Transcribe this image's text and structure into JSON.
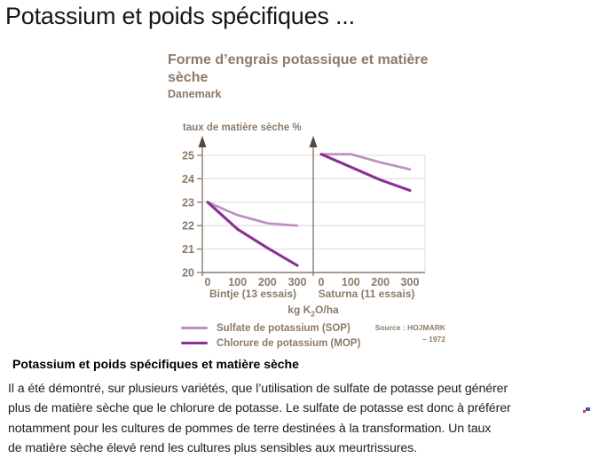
{
  "page": {
    "title": "Potassium et poids spécifiques ...",
    "section_heading": "Potassium et poids spécifiques et matière sèche",
    "body_lines": [
      "Il a été démontré, sur plusieurs variétés, que l’utilisation de sulfate de potasse peut générer",
      "plus de matière sèche que le chlorure de potasse. Le sulfate de potasse est donc à préférer",
      "notamment pour les cultures de pommes de terre destinées à la transformation. Un taux",
      "de matière sèche élevé rend les cultures plus sensibles aux meurtrissures."
    ]
  },
  "colors": {
    "accent_brown": "#8c7a69",
    "arrow_brown": "#55483b",
    "grid_gray": "#dcdcdc",
    "sop_purple": "#c18dc3",
    "mop_purple": "#8b2f94"
  },
  "chart_data": {
    "type": "line",
    "title": "Forme d’engrais potassique et matière sèche",
    "title_lines": [
      "Forme d’engrais potassique et matière",
      "sèche"
    ],
    "subtitle": "Danemark",
    "ylabel": "taux de matière sèche %",
    "xlabel_parts": {
      "prefix": "kg K",
      "sub": "2",
      "suffix": "O/ha"
    },
    "ylim": [
      20,
      25
    ],
    "yticks": [
      20,
      21,
      22,
      23,
      24,
      25
    ],
    "x": [
      0,
      100,
      200,
      300
    ],
    "xticks": [
      0,
      100,
      200,
      300
    ],
    "grid": true,
    "legend_position": "bottom-left",
    "panels": [
      {
        "label": "Bintje (13 essais)",
        "series": [
          {
            "name": "Sulfate de potassium (SOP)",
            "color": "#c18dc3",
            "values": [
              23.0,
              22.45,
              22.1,
              22.0
            ]
          },
          {
            "name": "Chlorure de potassium (MOP)",
            "color": "#8b2f94",
            "values": [
              23.0,
              21.85,
              21.05,
              20.3
            ]
          }
        ]
      },
      {
        "label": "Saturna (11 essais)",
        "series": [
          {
            "name": "Sulfate de potassium (SOP)",
            "color": "#c18dc3",
            "values": [
              25.05,
              25.05,
              24.7,
              24.4
            ]
          },
          {
            "name": "Chlorure de potassium (MOP)",
            "color": "#8b2f94",
            "values": [
              25.05,
              24.5,
              23.95,
              23.5
            ]
          }
        ]
      }
    ],
    "legend": [
      {
        "label": "Sulfate de potassium (SOP)",
        "color": "#c18dc3"
      },
      {
        "label": "Chlorure de potassium (MOP)",
        "color": "#8b2f94"
      }
    ],
    "source_line1": "Source : HOJMARK",
    "source_line2": "– 1972"
  }
}
